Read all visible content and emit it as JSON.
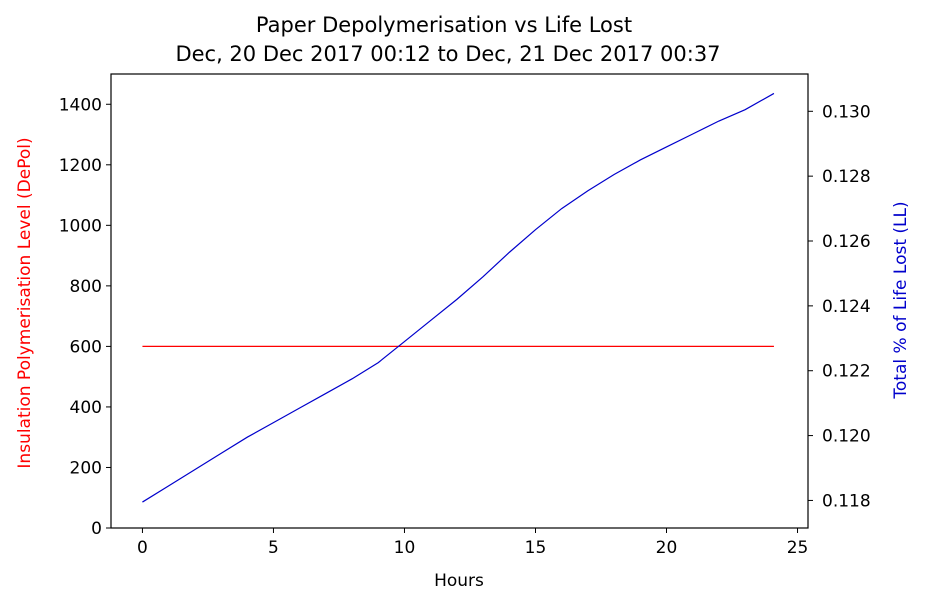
{
  "chart_data": {
    "type": "line",
    "title": "Paper Depolymerisation vs Life Lost",
    "subtitle": "Dec, 20 Dec 2017 00:12 to Dec, 21 Dec 2017 00:37",
    "xlabel": "Hours",
    "ylabel_left": "Insulation Polymerisation Level (DePol)",
    "ylabel_right": "Total % of Life Lost (LL)",
    "xlim": [
      -1.2,
      25.4
    ],
    "ylim_left": [
      0,
      1500
    ],
    "ylim_right": [
      0.11715,
      0.13115
    ],
    "x_ticks": [
      0,
      5,
      10,
      15,
      20,
      25
    ],
    "x_tick_labels": [
      "0",
      "5",
      "10",
      "15",
      "20",
      "25"
    ],
    "y_left_ticks": [
      0,
      200,
      400,
      600,
      800,
      1000,
      1200,
      1400
    ],
    "y_left_tick_labels": [
      "0",
      "200",
      "400",
      "600",
      "800",
      "1000",
      "1200",
      "1400"
    ],
    "y_right_ticks": [
      0.118,
      0.12,
      0.122,
      0.124,
      0.126,
      0.128,
      0.13
    ],
    "y_right_tick_labels": [
      "0.118",
      "0.120",
      "0.122",
      "0.124",
      "0.126",
      "0.128",
      "0.130"
    ],
    "grid": false,
    "colors": {
      "depol": "#ff0000",
      "ll": "#0000cc",
      "left_label": "#ff0000",
      "right_label": "#0000cc"
    },
    "series": [
      {
        "axis": "left",
        "color": "#ff0000",
        "x": [
          0,
          24.1
        ],
        "y": [
          600,
          600
        ]
      },
      {
        "axis": "right",
        "color": "#0000cc",
        "x": [
          0,
          1,
          2,
          3,
          4,
          5,
          6,
          7,
          8,
          9,
          10,
          11,
          12,
          13,
          14,
          15,
          16,
          17,
          18,
          19,
          20,
          21,
          22,
          23,
          24.1
        ],
        "y": [
          0.11795,
          0.11845,
          0.11895,
          0.11945,
          0.11995,
          0.1204,
          0.12085,
          0.1213,
          0.12175,
          0.12225,
          0.1229,
          0.12355,
          0.1242,
          0.1249,
          0.12565,
          0.12635,
          0.127,
          0.12755,
          0.12805,
          0.1285,
          0.1289,
          0.1293,
          0.1297,
          0.13005,
          0.13055
        ]
      }
    ]
  }
}
